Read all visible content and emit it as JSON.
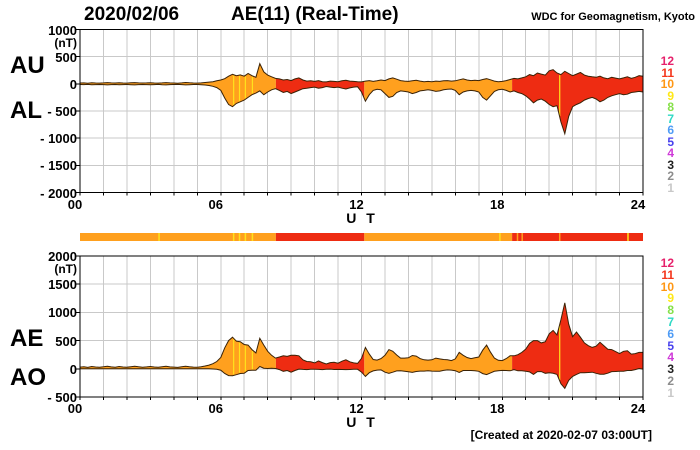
{
  "header": {
    "date": "2020/02/06",
    "title": "AE(11) (Real-Time)",
    "source": "WDC for Geomagnetism, Kyoto"
  },
  "footer": {
    "created": "[Created at 2020-02-07 03:00UT]"
  },
  "axis": {
    "x_label": "U T",
    "x_ticks": [
      "00",
      "06",
      "12",
      "18",
      "24"
    ],
    "x_tick_hours": [
      0,
      6,
      12,
      18,
      24
    ],
    "hours": 24
  },
  "panels": [
    {
      "left_labels": [
        "AU",
        "AL"
      ],
      "unit": "(nT)",
      "ymax": 1000,
      "ymin": -2000,
      "ystep": 500,
      "ytick_labels": [
        "1000",
        "500",
        "0",
        "- 500",
        "- 1000",
        "- 1500",
        "- 2000"
      ],
      "upper": "AU",
      "lower": "AL"
    },
    {
      "left_labels": [
        "AE",
        "AO"
      ],
      "unit": "(nT)",
      "ymax": 2000,
      "ymin": -500,
      "ystep": 500,
      "ytick_labels": [
        "2000",
        "1500",
        "1000",
        "500",
        "0",
        "- 500"
      ],
      "upper": "AE",
      "lower": "AO"
    }
  ],
  "legend": {
    "values": [
      "12",
      "11",
      "10",
      "9",
      "8",
      "7",
      "6",
      "5",
      "4",
      "3",
      "2",
      "1"
    ],
    "colors": [
      "#e6216b",
      "#f4361c",
      "#ff9714",
      "#ffe816",
      "#86e04a",
      "#2fd9c5",
      "#4f9cf5",
      "#4a43ee",
      "#cf3ad8",
      "#1f1f1f",
      "#8c8c8c",
      "#c8c8c8"
    ]
  },
  "colors": {
    "grid": "#c9c9c9",
    "frame": "#000000",
    "outline": "#3a2206",
    "fleck_yellow": "#ffe21c"
  },
  "chart_data": {
    "type": "area",
    "title": "AE(11) (Real-Time)",
    "date": "2020/02/06",
    "x_unit": "UT hours",
    "x_range": [
      0,
      24
    ],
    "sample_interval_minutes": 10,
    "panels": [
      {
        "name": "AU/AL",
        "ylabel": "(nT)",
        "ylim": [
          -2000,
          1000
        ],
        "upper": "AU",
        "lower": "AL"
      },
      {
        "name": "AE/AO",
        "ylabel": "(nT)",
        "ylim": [
          -500,
          2000
        ],
        "upper": "AE",
        "lower": "AO"
      }
    ],
    "series": [
      {
        "name": "AU",
        "values": [
          15,
          18,
          12,
          20,
          16,
          14,
          18,
          22,
          17,
          15,
          20,
          16,
          14,
          19,
          23,
          18,
          15,
          17,
          20,
          16,
          13,
          18,
          22,
          17,
          15,
          12,
          18,
          24,
          19,
          15,
          14,
          18,
          25,
          32,
          40,
          55,
          70,
          95,
          140,
          175,
          150,
          165,
          140,
          190,
          150,
          120,
          370,
          220,
          160,
          130,
          100,
          90,
          70,
          80,
          60,
          90,
          110,
          70,
          50,
          55,
          45,
          60,
          40,
          35,
          50,
          45,
          40,
          55,
          65,
          50,
          45,
          40,
          35,
          50,
          60,
          45,
          55,
          70,
          60,
          90,
          110,
          85,
          60,
          50,
          45,
          55,
          65,
          50,
          40,
          45,
          40,
          50,
          45,
          55,
          60,
          50,
          55,
          75,
          90,
          70,
          60,
          65,
          60,
          80,
          95,
          75,
          50,
          40,
          45,
          60,
          80,
          100,
          90,
          110,
          130,
          170,
          150,
          200,
          180,
          160,
          240,
          260,
          200,
          170,
          230,
          190,
          150,
          180,
          210,
          160,
          140,
          130,
          120,
          140,
          110,
          95,
          120,
          105,
          90,
          110,
          130,
          100,
          120,
          150,
          140
        ]
      },
      {
        "name": "AL",
        "values": [
          -12,
          -15,
          -10,
          -18,
          -14,
          -12,
          -15,
          -20,
          -14,
          -12,
          -18,
          -15,
          -12,
          -16,
          -20,
          -15,
          -12,
          -14,
          -18,
          -14,
          -11,
          -16,
          -20,
          -15,
          -13,
          -10,
          -15,
          -20,
          -16,
          -13,
          -12,
          -16,
          -22,
          -30,
          -45,
          -70,
          -120,
          -260,
          -380,
          -420,
          -360,
          -330,
          -300,
          -250,
          -200,
          -170,
          -130,
          -200,
          -150,
          -110,
          -90,
          -120,
          -160,
          -140,
          -180,
          -150,
          -120,
          -90,
          -80,
          -70,
          -60,
          -80,
          -70,
          -50,
          -60,
          -70,
          -60,
          -80,
          -95,
          -75,
          -60,
          -55,
          -150,
          -320,
          -200,
          -120,
          -100,
          -110,
          -180,
          -250,
          -230,
          -160,
          -130,
          -140,
          -150,
          -180,
          -160,
          -130,
          -120,
          -110,
          -120,
          -140,
          -130,
          -110,
          -100,
          -95,
          -120,
          -200,
          -150,
          -130,
          -120,
          -130,
          -150,
          -250,
          -300,
          -220,
          -140,
          -110,
          -100,
          -120,
          -150,
          -130,
          -160,
          -180,
          -220,
          -280,
          -350,
          -300,
          -280,
          -320,
          -380,
          -420,
          -400,
          -700,
          -920,
          -600,
          -420,
          -380,
          -350,
          -300,
          -270,
          -250,
          -280,
          -330,
          -300,
          -250,
          -220,
          -200,
          -180,
          -200,
          -190,
          -160,
          -150,
          -140,
          -150
        ]
      },
      {
        "name": "AE",
        "values": [
          30,
          35,
          25,
          40,
          32,
          28,
          35,
          45,
          33,
          28,
          40,
          32,
          28,
          38,
          45,
          35,
          28,
          33,
          40,
          32,
          26,
          36,
          44,
          34,
          30,
          24,
          35,
          46,
          38,
          30,
          28,
          36,
          50,
          65,
          90,
          130,
          200,
          370,
          500,
          560,
          490,
          480,
          430,
          420,
          340,
          280,
          540,
          420,
          310,
          240,
          190,
          210,
          230,
          220,
          240,
          240,
          230,
          160,
          130,
          125,
          105,
          140,
          110,
          85,
          110,
          115,
          100,
          135,
          160,
          125,
          105,
          95,
          185,
          380,
          260,
          165,
          155,
          180,
          240,
          340,
          310,
          245,
          190,
          190,
          195,
          235,
          225,
          180,
          160,
          155,
          160,
          190,
          175,
          165,
          160,
          145,
          175,
          290,
          240,
          200,
          180,
          195,
          210,
          330,
          420,
          295,
          190,
          150,
          145,
          180,
          230,
          230,
          250,
          290,
          350,
          450,
          500,
          500,
          460,
          480,
          620,
          680,
          600,
          870,
          1170,
          790,
          570,
          650,
          560,
          460,
          410,
          380,
          400,
          470,
          410,
          345,
          340,
          305,
          270,
          310,
          320,
          260,
          270,
          290,
          290
        ]
      },
      {
        "name": "AO",
        "values": [
          2,
          2,
          1,
          1,
          1,
          1,
          2,
          1,
          2,
          2,
          1,
          1,
          1,
          2,
          2,
          2,
          2,
          2,
          1,
          1,
          1,
          1,
          1,
          1,
          1,
          1,
          2,
          2,
          2,
          1,
          1,
          1,
          2,
          1,
          -3,
          -8,
          -25,
          -83,
          -120,
          -123,
          -105,
          -83,
          -80,
          -30,
          -25,
          -25,
          40,
          10,
          5,
          10,
          5,
          -15,
          -45,
          -30,
          -60,
          -30,
          -5,
          -10,
          -15,
          -8,
          -8,
          -10,
          -15,
          -8,
          -5,
          -13,
          -10,
          -13,
          -15,
          -13,
          -8,
          -8,
          -58,
          -135,
          -70,
          -38,
          -23,
          -20,
          -60,
          -80,
          -60,
          -38,
          -35,
          -45,
          -53,
          -63,
          -48,
          -40,
          -40,
          -33,
          -40,
          -45,
          -43,
          -28,
          -20,
          -23,
          -33,
          -63,
          -30,
          -30,
          -30,
          -33,
          -45,
          -85,
          -103,
          -73,
          -45,
          -35,
          -28,
          -30,
          -35,
          -15,
          -35,
          -35,
          -45,
          -55,
          -100,
          -50,
          -50,
          -80,
          -70,
          -80,
          -100,
          -265,
          -345,
          -205,
          -135,
          -100,
          -70,
          -70,
          -65,
          -60,
          -80,
          -95,
          -95,
          -78,
          -50,
          -48,
          -45,
          -45,
          -30,
          -30,
          -15,
          5,
          -5
        ]
      }
    ],
    "station_count_spans": [
      {
        "t0": 0,
        "t1": 8.35,
        "count": 10
      },
      {
        "t0": 8.35,
        "t1": 12.12,
        "count": 11
      },
      {
        "t0": 12.12,
        "t1": 18.42,
        "count": 10
      },
      {
        "t0": 18.42,
        "t1": 24,
        "count": 11
      }
    ],
    "count_colors": {
      "9": "#ffe21c",
      "10": "#ffa01e",
      "11": "#ee2c12"
    },
    "band_fleck_hours": [
      6.55,
      6.8,
      7.05,
      7.35,
      20.45
    ],
    "bar_flecks": [
      {
        "t": 3.37,
        "count": 9
      },
      {
        "t": 6.55,
        "count": 9
      },
      {
        "t": 6.8,
        "count": 9
      },
      {
        "t": 7.05,
        "count": 9
      },
      {
        "t": 7.35,
        "count": 9
      },
      {
        "t": 17.9,
        "count": 9
      },
      {
        "t": 23.36,
        "count": 9
      },
      {
        "t": 18.65,
        "count": 10
      },
      {
        "t": 18.85,
        "count": 10
      },
      {
        "t": 20.45,
        "count": 10
      }
    ]
  }
}
